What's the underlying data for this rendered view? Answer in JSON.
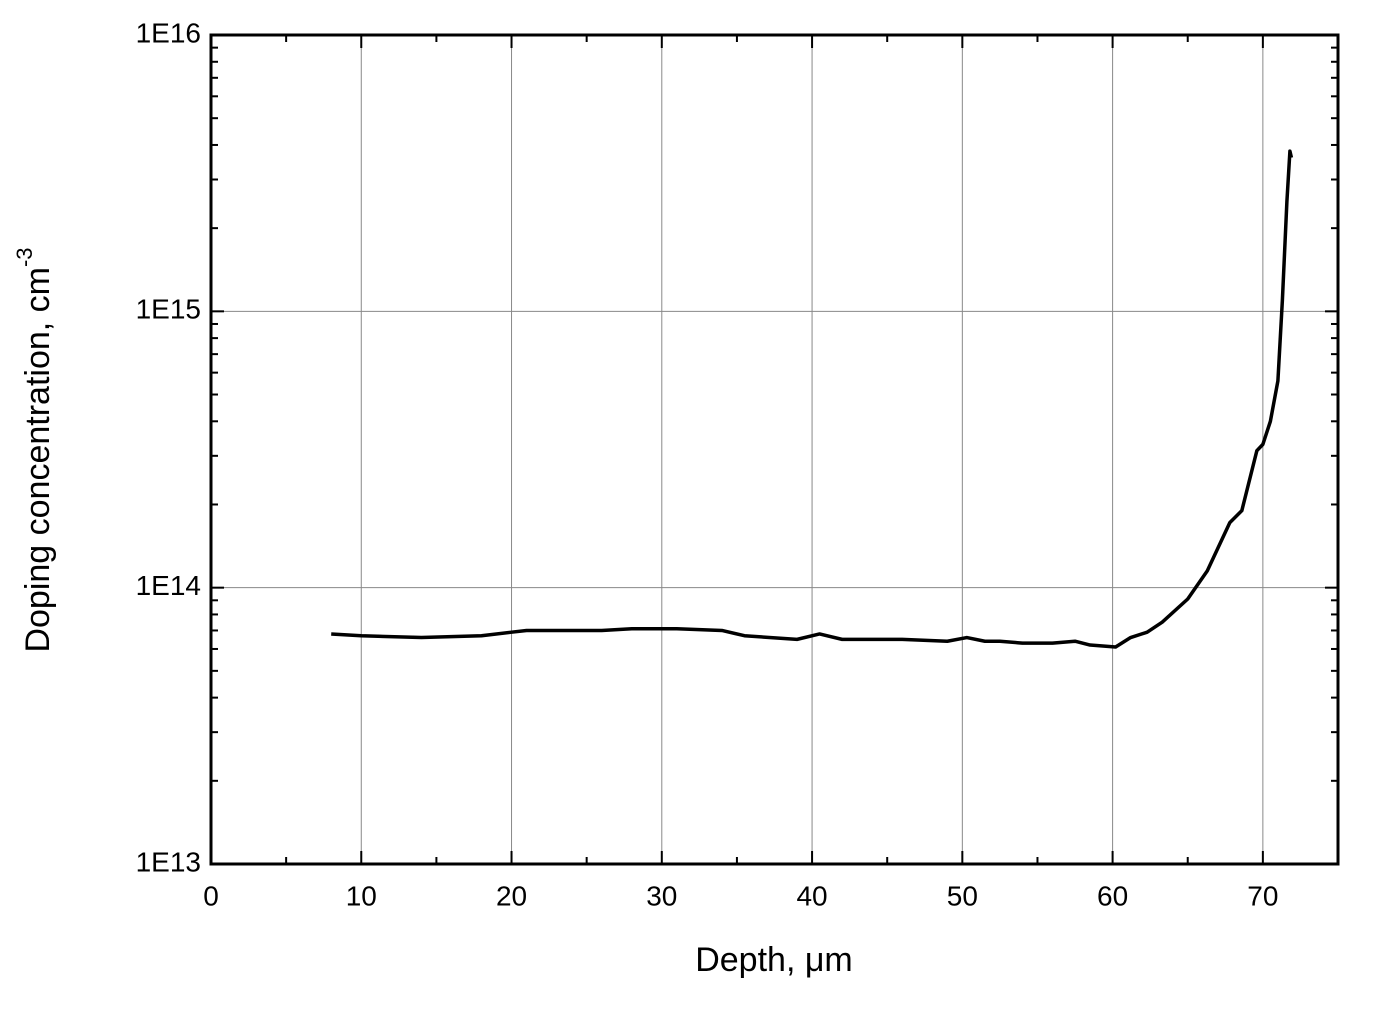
{
  "chart_data": {
    "type": "line",
    "x_label": "Depth, μm",
    "y_label": {
      "text": "Doping concentration, cm",
      "superscript": "-3"
    },
    "x": [
      8,
      10,
      14,
      18,
      20,
      21,
      26,
      28,
      31,
      34,
      35.5,
      39,
      40.5,
      42,
      46,
      49,
      50.3,
      51.5,
      52.5,
      54,
      56,
      57.5,
      58.5,
      60.2,
      61.2,
      62.3,
      63.3,
      65,
      66.3,
      67.8,
      68.6,
      69.6,
      70,
      70.5,
      71,
      71.3,
      71.6,
      71.8,
      71.9
    ],
    "series": [
      {
        "color": "#000000",
        "values": [
          68000000000000.0,
          67000000000000.0,
          66000000000000.0,
          67000000000000.0,
          69000000000000.0,
          70000000000000.0,
          70000000000000.0,
          71000000000000.0,
          71000000000000.0,
          70000000000000.0,
          67000000000000.0,
          65000000000000.0,
          68000000000000.0,
          65000000000000.0,
          65000000000000.0,
          64000000000000.0,
          66000000000000.0,
          64000000000000.0,
          64000000000000.0,
          63000000000000.0,
          63000000000000.0,
          64000000000000.0,
          62000000000000.0,
          61000000000000.0,
          66000000000000.0,
          69000000000000.0,
          75000000000000.0,
          91000000000000.0,
          115000000000000.0,
          172000000000000.0,
          190000000000000.0,
          313000000000000.0,
          330000000000000.0,
          400000000000000.0,
          560000000000000.0,
          1100000000000000.0,
          2500000000000000.0,
          3800000000000000.0,
          3600000000000000.0
        ]
      }
    ],
    "xlim": [
      0,
      75
    ],
    "xticks": [
      0,
      10,
      20,
      30,
      40,
      50,
      60,
      70
    ],
    "x_minor_ticks": [
      5,
      15,
      25,
      35,
      45,
      55,
      65,
      75
    ],
    "ylim": [
      10000000000000.0,
      1e+16
    ],
    "log_y": true,
    "yticks": [
      {
        "value": 10000000000000.0,
        "label": "1E13"
      },
      {
        "value": 100000000000000.0,
        "label": "1E14"
      },
      {
        "value": 1000000000000000.0,
        "label": "1E15"
      },
      {
        "value": 1e+16,
        "label": "1E16"
      }
    ],
    "y_minor_ticks": [
      20000000000000.0,
      30000000000000.0,
      40000000000000.0,
      50000000000000.0,
      60000000000000.0,
      70000000000000.0,
      80000000000000.0,
      90000000000000.0,
      200000000000000.0,
      300000000000000.0,
      400000000000000.0,
      500000000000000.0,
      600000000000000.0,
      700000000000000.0,
      800000000000000.0,
      900000000000000.0,
      2000000000000000.0,
      3000000000000000.0,
      4000000000000000.0,
      5000000000000000.0,
      6000000000000000.0,
      7000000000000000.0,
      8000000000000000.0,
      9000000000000000.0
    ],
    "grid": true
  }
}
